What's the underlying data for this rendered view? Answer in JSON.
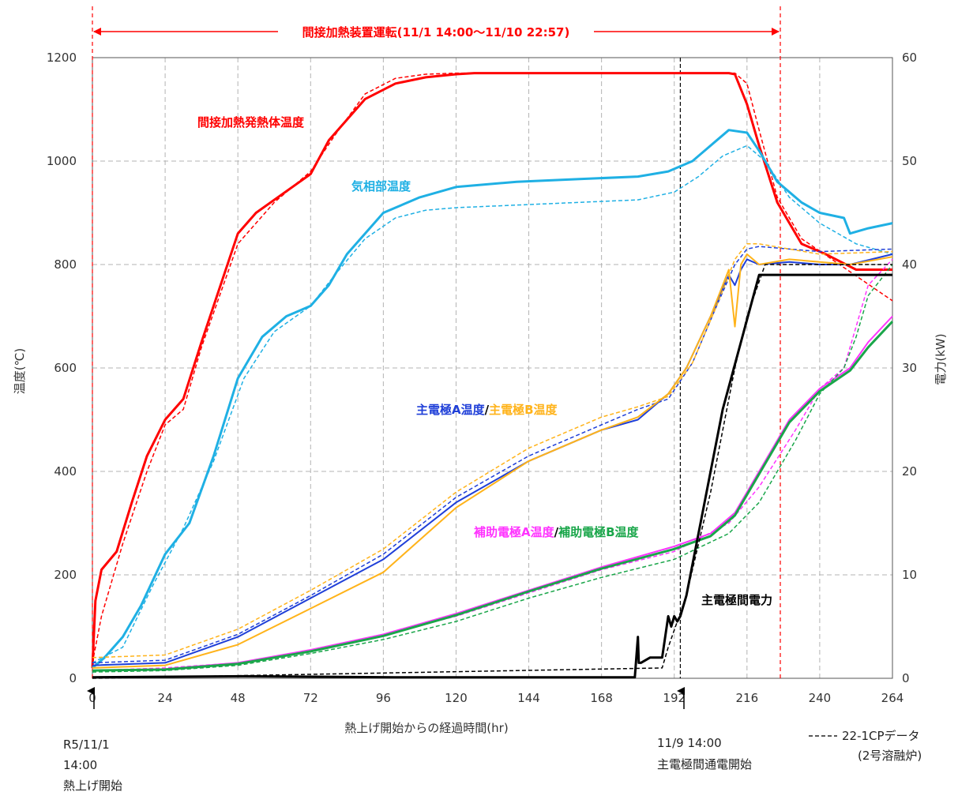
{
  "chart_data": {
    "type": "line",
    "xlabel": "熱上げ開始からの経過時間(hr)",
    "ylabel": "温度(℃)",
    "y2label": "電力(kW)",
    "xlim": [
      0,
      264
    ],
    "ylim": [
      0,
      1200
    ],
    "y2lim": [
      0,
      60
    ],
    "xticks": [
      "0",
      "24",
      "48",
      "72",
      "96",
      "120",
      "144",
      "168",
      "192",
      "216",
      "240",
      "264"
    ],
    "yticks": [
      "0",
      "200",
      "400",
      "600",
      "800",
      "1000",
      "1200"
    ],
    "y2ticks": [
      "0",
      "10",
      "20",
      "30",
      "40",
      "50",
      "60"
    ],
    "grid": true,
    "operation_label": "間接加熱装置運転(11/1 14:00～11/10 22:57)",
    "operation_range": [
      0,
      227
    ],
    "current_start_line": 194,
    "start_note": [
      "R5/11/1",
      "14:00",
      "熱上げ開始"
    ],
    "current_note": [
      "11/9 14:00",
      "主電極間通電開始"
    ],
    "legend": [
      "22-1CPデータ",
      "(2号溶融炉)"
    ],
    "labels": {
      "heater": "間接加熱発熱体温度",
      "gas": "気相部温度",
      "main_a": "主電極A温度",
      "slash": "/",
      "main_b": "主電極B温度",
      "aux_a": "補助電極A温度",
      "aux_b": "補助電極B温度",
      "power": "主電極間電力"
    },
    "colors": {
      "heater": "#ff0000",
      "gas": "#1fb0e4",
      "main_a": "#1f3fd8",
      "main_b": "#ffb31a",
      "aux_a": "#ff33ff",
      "aux_b": "#1aa64a",
      "power": "#000000",
      "operation": "#ff0000"
    },
    "series": [
      {
        "name": "間接加熱発熱体温度",
        "key": "heater",
        "axis": "left",
        "style": "solid",
        "x": [
          0,
          1,
          3,
          8,
          13,
          18,
          24,
          30,
          36,
          48,
          54,
          72,
          78,
          90,
          100,
          110,
          120,
          126,
          150,
          180,
          210,
          212,
          216,
          220,
          226,
          234,
          242,
          252,
          264
        ],
        "y": [
          20,
          150,
          210,
          245,
          340,
          430,
          500,
          540,
          650,
          860,
          900,
          975,
          1040,
          1120,
          1150,
          1162,
          1168,
          1170,
          1170,
          1170,
          1170,
          1168,
          1110,
          1030,
          920,
          840,
          820,
          790,
          790
        ]
      },
      {
        "name": "",
        "key": "heater",
        "axis": "left",
        "style": "dashed",
        "x": [
          0,
          3,
          10,
          18,
          24,
          30,
          36,
          48,
          60,
          72,
          80,
          90,
          100,
          110,
          120,
          125,
          150,
          180,
          212,
          216,
          220,
          226,
          234,
          244,
          254,
          264
        ],
        "y": [
          30,
          120,
          260,
          400,
          490,
          520,
          640,
          840,
          920,
          980,
          1050,
          1130,
          1160,
          1168,
          1170,
          1170,
          1170,
          1170,
          1170,
          1150,
          1060,
          930,
          850,
          810,
          770,
          730
        ]
      },
      {
        "name": "気相部温度",
        "key": "gas",
        "axis": "left",
        "style": "solid",
        "x": [
          0,
          4,
          10,
          16,
          24,
          32,
          40,
          48,
          56,
          64,
          72,
          78,
          84,
          96,
          108,
          120,
          140,
          160,
          180,
          190,
          198,
          206,
          210,
          216,
          220,
          226,
          234,
          240,
          248,
          250,
          256,
          264
        ],
        "y": [
          20,
          40,
          80,
          140,
          240,
          300,
          430,
          580,
          660,
          700,
          720,
          760,
          820,
          900,
          930,
          950,
          960,
          965,
          970,
          980,
          1000,
          1040,
          1060,
          1055,
          1020,
          960,
          920,
          900,
          890,
          860,
          870,
          880
        ]
      },
      {
        "name": "",
        "key": "gas",
        "axis": "left",
        "style": "dashed",
        "x": [
          0,
          10,
          20,
          30,
          40,
          50,
          60,
          72,
          80,
          90,
          100,
          110,
          120,
          140,
          160,
          180,
          192,
          200,
          208,
          216,
          222,
          230,
          240,
          252,
          264
        ],
        "y": [
          30,
          60,
          180,
          290,
          420,
          580,
          670,
          720,
          780,
          850,
          890,
          905,
          910,
          915,
          920,
          925,
          940,
          970,
          1010,
          1030,
          1000,
          930,
          880,
          840,
          820
        ]
      },
      {
        "name": "主電極A温度",
        "key": "main_a",
        "axis": "left",
        "style": "solid",
        "x": [
          0,
          24,
          48,
          72,
          96,
          120,
          144,
          168,
          180,
          190,
          196,
          204,
          210,
          212,
          214,
          216,
          220,
          230,
          240,
          250,
          264
        ],
        "y": [
          25,
          30,
          80,
          155,
          230,
          340,
          420,
          480,
          500,
          550,
          600,
          700,
          780,
          760,
          790,
          810,
          800,
          805,
          800,
          800,
          820
        ]
      },
      {
        "name": "",
        "key": "main_a",
        "axis": "left",
        "style": "dashed",
        "x": [
          0,
          24,
          48,
          72,
          96,
          120,
          144,
          168,
          180,
          190,
          198,
          206,
          212,
          216,
          220,
          230,
          240,
          264
        ],
        "y": [
          30,
          35,
          85,
          160,
          240,
          350,
          430,
          490,
          520,
          540,
          610,
          720,
          800,
          830,
          835,
          830,
          825,
          830
        ]
      },
      {
        "name": "主電極B温度",
        "key": "main_b",
        "axis": "left",
        "style": "solid",
        "x": [
          0,
          24,
          48,
          72,
          96,
          120,
          144,
          168,
          180,
          190,
          196,
          204,
          210,
          212,
          214,
          216,
          220,
          230,
          240,
          250,
          264
        ],
        "y": [
          20,
          25,
          65,
          135,
          205,
          330,
          420,
          480,
          505,
          550,
          600,
          700,
          790,
          680,
          800,
          820,
          800,
          810,
          805,
          800,
          815
        ]
      },
      {
        "name": "",
        "key": "main_b",
        "axis": "left",
        "style": "dashed",
        "x": [
          0,
          24,
          48,
          72,
          96,
          120,
          144,
          168,
          180,
          190,
          198,
          206,
          212,
          216,
          220,
          230,
          240,
          264
        ],
        "y": [
          40,
          45,
          95,
          170,
          250,
          360,
          445,
          505,
          525,
          545,
          610,
          720,
          810,
          840,
          840,
          830,
          820,
          825
        ]
      },
      {
        "name": "補助電極A温度",
        "key": "aux_a",
        "axis": "left",
        "style": "solid",
        "x": [
          0,
          24,
          48,
          72,
          96,
          120,
          144,
          168,
          192,
          204,
          212,
          220,
          230,
          240,
          250,
          256,
          264
        ],
        "y": [
          15,
          18,
          30,
          55,
          85,
          125,
          170,
          215,
          255,
          280,
          320,
          400,
          500,
          560,
          600,
          650,
          700
        ]
      },
      {
        "name": "",
        "key": "aux_a",
        "axis": "left",
        "style": "dashed",
        "x": [
          0,
          24,
          48,
          72,
          96,
          120,
          144,
          168,
          192,
          210,
          220,
          232,
          240,
          248,
          252,
          256,
          264
        ],
        "y": [
          15,
          20,
          30,
          55,
          85,
          120,
          165,
          210,
          245,
          300,
          370,
          480,
          560,
          600,
          680,
          760,
          810
        ]
      },
      {
        "name": "補助電極B温度",
        "key": "aux_b",
        "axis": "left",
        "style": "solid",
        "x": [
          0,
          24,
          48,
          72,
          96,
          120,
          144,
          168,
          192,
          204,
          212,
          220,
          230,
          240,
          250,
          256,
          264
        ],
        "y": [
          15,
          17,
          28,
          52,
          82,
          122,
          168,
          212,
          250,
          275,
          315,
          395,
          495,
          555,
          595,
          640,
          690
        ]
      },
      {
        "name": "",
        "key": "aux_b",
        "axis": "left",
        "style": "dashed",
        "x": [
          0,
          24,
          48,
          72,
          96,
          120,
          144,
          168,
          192,
          210,
          220,
          232,
          240,
          248,
          252,
          256,
          264
        ],
        "y": [
          12,
          15,
          25,
          48,
          75,
          110,
          155,
          195,
          230,
          280,
          340,
          460,
          550,
          600,
          660,
          740,
          800
        ]
      },
      {
        "name": "主電極間電力",
        "key": "power",
        "axis": "right",
        "style": "solid",
        "x": [
          0,
          50,
          100,
          150,
          179,
          180,
          180.3,
          181,
          184,
          188,
          190,
          191,
          192,
          193,
          194,
          196,
          208,
          220,
          264
        ],
        "y": [
          0.1,
          0.2,
          0.1,
          0.1,
          0.1,
          4,
          1.5,
          1.5,
          2,
          2,
          6,
          5,
          6,
          5.5,
          6,
          8,
          26,
          39,
          39
        ]
      },
      {
        "name": "",
        "key": "power",
        "axis": "right",
        "style": "dashed",
        "x": [
          0,
          188,
          190,
          196,
          204,
          212,
          216,
          222,
          264
        ],
        "y": [
          0,
          1,
          3,
          8,
          18,
          30,
          35,
          40,
          40
        ]
      }
    ]
  }
}
